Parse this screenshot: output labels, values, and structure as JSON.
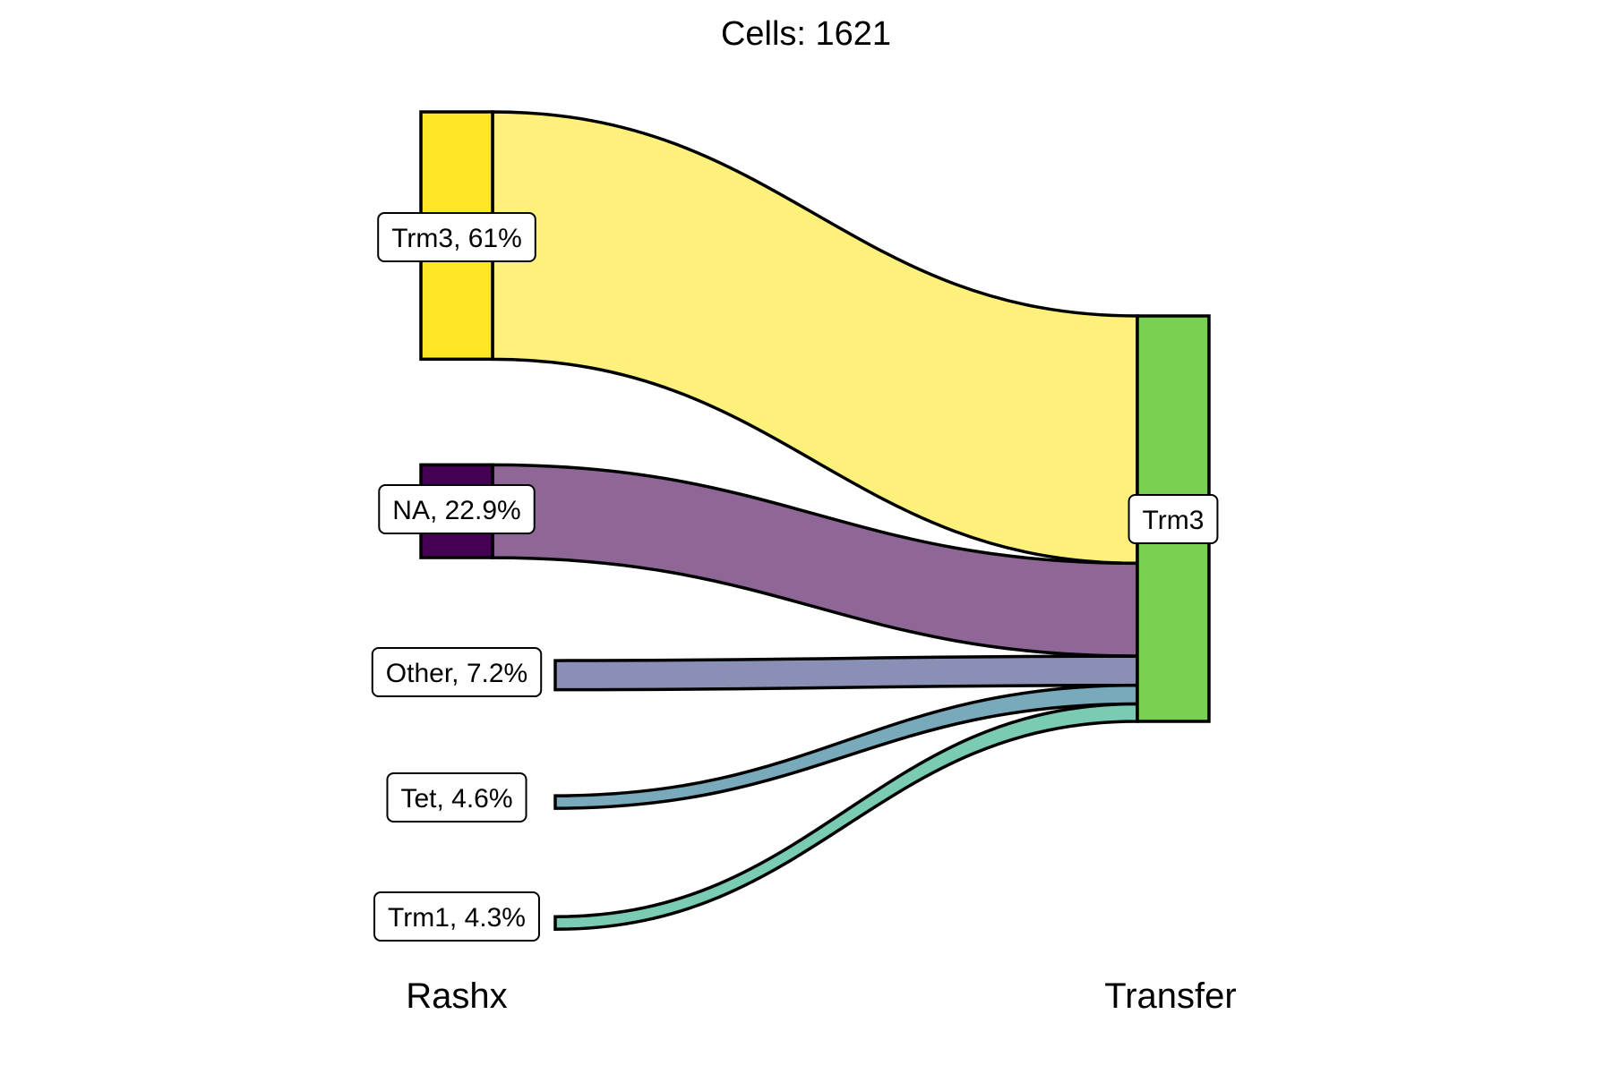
{
  "chart_data": {
    "type": "sankey",
    "title": "Cells:  1621",
    "axes": [
      "Rashx",
      "Transfer"
    ],
    "sources": [
      {
        "name": "Trm3",
        "label": "Trm3, 61%",
        "percent": 61.0,
        "node_color": "#FDE725",
        "flow_color": "#FDF17C"
      },
      {
        "name": "NA",
        "label": "NA, 22.9%",
        "percent": 22.9,
        "node_color": "#440154",
        "flow_color": "#8F6797"
      },
      {
        "name": "Other",
        "label": "Other, 7.2%",
        "percent": 7.2,
        "node_color": "#8A8FB5",
        "flow_color": "#8A8FB5"
      },
      {
        "name": "Tet",
        "label": "Tet, 4.6%",
        "percent": 4.6,
        "node_color": "#79AABB",
        "flow_color": "#79AABB"
      },
      {
        "name": "Trm1",
        "label": "Trm1, 4.3%",
        "percent": 4.3,
        "node_color": "#7ACBB4",
        "flow_color": "#7ACBB4"
      }
    ],
    "targets": [
      {
        "name": "Trm3",
        "label": "Trm3",
        "percent": 100,
        "node_color": "#7AD151"
      }
    ],
    "flows": [
      {
        "from": "Trm3",
        "to": "Trm3",
        "percent": 61.0
      },
      {
        "from": "NA",
        "to": "Trm3",
        "percent": 22.9
      },
      {
        "from": "Other",
        "to": "Trm3",
        "percent": 7.2
      },
      {
        "from": "Tet",
        "to": "Trm3",
        "percent": 4.6
      },
      {
        "from": "Trm1",
        "to": "Trm3",
        "percent": 4.3
      }
    ]
  }
}
